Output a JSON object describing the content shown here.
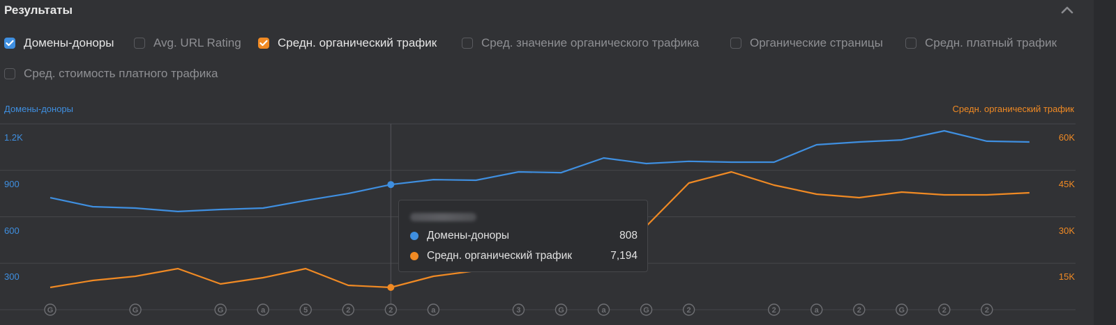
{
  "header": {
    "title": "Результаты",
    "collapse_icon": "chevron-up-icon"
  },
  "filters": [
    {
      "label": "Домены-доноры",
      "checked": true,
      "color": "#3f8fe0"
    },
    {
      "label": "Avg. URL Rating",
      "checked": false
    },
    {
      "label": "Средн. органический трафик",
      "checked": true,
      "color": "#f08a24"
    },
    {
      "label": "Сред. значение органического трафика",
      "checked": false
    },
    {
      "label": "Органические страницы",
      "checked": false
    },
    {
      "label": "Средн. платный трафик",
      "checked": false
    },
    {
      "label": "Сред. стоимость платного трафика",
      "checked": false
    }
  ],
  "colors": {
    "blue": "#3f8fe0",
    "orange": "#f08a24",
    "grid": "#45464a",
    "marker": "#6e6f73"
  },
  "tooltip": {
    "date": "август 2021",
    "rows": [
      {
        "label": "Домены-доноры",
        "value": "808",
        "color": "#3f8fe0"
      },
      {
        "label": "Средн. органический трафик",
        "value": "7,194",
        "color": "#f08a24"
      }
    ]
  },
  "chart_data": {
    "type": "line",
    "title": "",
    "x": [
      1,
      2,
      3,
      4,
      5,
      6,
      7,
      8,
      9,
      10,
      11,
      12,
      13,
      14,
      15,
      16,
      17,
      18,
      19,
      20,
      21,
      22,
      23,
      24
    ],
    "series": [
      {
        "name": "Домены-доноры",
        "axis": "left",
        "color": "#3f8fe0",
        "values": [
          723,
          665,
          656,
          634,
          647,
          656,
          705,
          750,
          808,
          840,
          836,
          890,
          885,
          980,
          944,
          958,
          953,
          953,
          1065,
          1083,
          1096,
          1155,
          1088,
          1083
        ]
      },
      {
        "name": "Средн. органический трафик",
        "axis": "right",
        "color": "#f08a24",
        "values": [
          7190,
          9437,
          10786,
          13258,
          8314,
          10336,
          13258,
          7865,
          7194,
          10786,
          12583,
          15280,
          19100,
          22245,
          26964,
          40896,
          44491,
          40222,
          37300,
          36177,
          37975,
          37076,
          37076,
          37750
        ]
      }
    ],
    "ylabel_left": "Домены-доноры",
    "ylabel_right": "Средн. органический трафик",
    "yticks_left": [
      "1.2K",
      "900",
      "600",
      "300"
    ],
    "yticks_right": [
      "60K",
      "45K",
      "30K",
      "15K"
    ],
    "ylim_left": [
      0,
      1200
    ],
    "ylim_right": [
      0,
      60000
    ],
    "grid": true,
    "highlighted_index": 8,
    "annotations": [
      {
        "index": 0,
        "mark": "G"
      },
      {
        "index": 2,
        "mark": "G"
      },
      {
        "index": 4,
        "mark": "G"
      },
      {
        "index": 5,
        "mark": "a"
      },
      {
        "index": 6,
        "mark": "5"
      },
      {
        "index": 7,
        "mark": "2"
      },
      {
        "index": 8,
        "mark": "2"
      },
      {
        "index": 9,
        "mark": "a"
      },
      {
        "index": 11,
        "mark": "3"
      },
      {
        "index": 12,
        "mark": "G"
      },
      {
        "index": 13,
        "mark": "a"
      },
      {
        "index": 14,
        "mark": "G"
      },
      {
        "index": 15,
        "mark": "2"
      },
      {
        "index": 17,
        "mark": "2"
      },
      {
        "index": 18,
        "mark": "a"
      },
      {
        "index": 19,
        "mark": "2"
      },
      {
        "index": 20,
        "mark": "G"
      },
      {
        "index": 21,
        "mark": "2"
      },
      {
        "index": 22,
        "mark": "2"
      }
    ]
  }
}
